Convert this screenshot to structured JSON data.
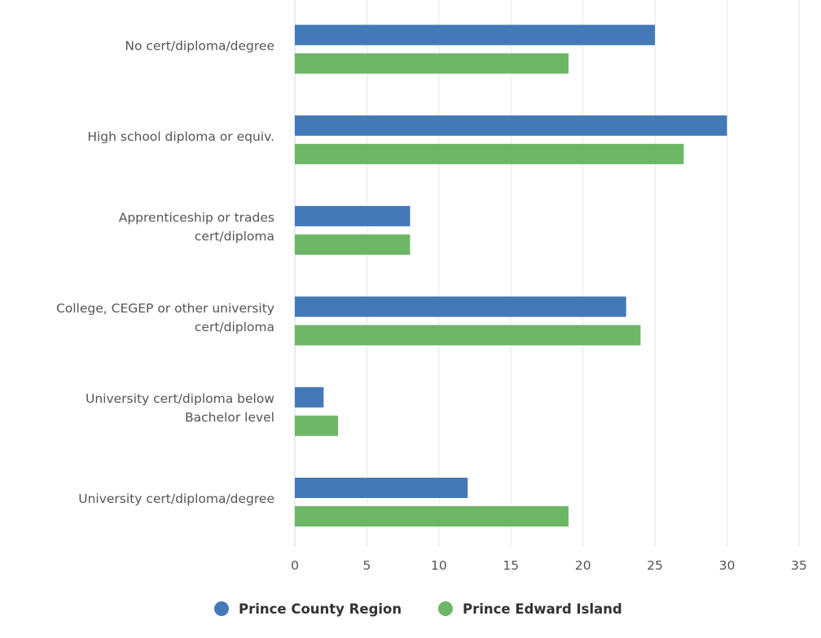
{
  "chart_data": {
    "type": "bar",
    "orientation": "horizontal",
    "categories": [
      [
        "No cert/diploma/degree"
      ],
      [
        "High school diploma or equiv."
      ],
      [
        "Apprenticeship or trades",
        "cert/diploma"
      ],
      [
        "College, CEGEP or other university",
        "cert/diploma"
      ],
      [
        "University cert/diploma below",
        "Bachelor level"
      ],
      [
        "University cert/diploma/degree"
      ]
    ],
    "series": [
      {
        "name": "Prince County Region",
        "color": "#4479b8",
        "values": [
          25,
          30,
          8,
          23,
          2,
          12
        ]
      },
      {
        "name": "Prince Edward Island",
        "color": "#6db665",
        "values": [
          19,
          27,
          8,
          24,
          3,
          19
        ]
      }
    ],
    "xlim": [
      0,
      35
    ],
    "xticks": [
      0,
      5,
      10,
      15,
      20,
      25,
      30,
      35
    ],
    "grid": true,
    "legend_position": "bottom-center",
    "title": "",
    "xlabel": "",
    "ylabel": ""
  }
}
